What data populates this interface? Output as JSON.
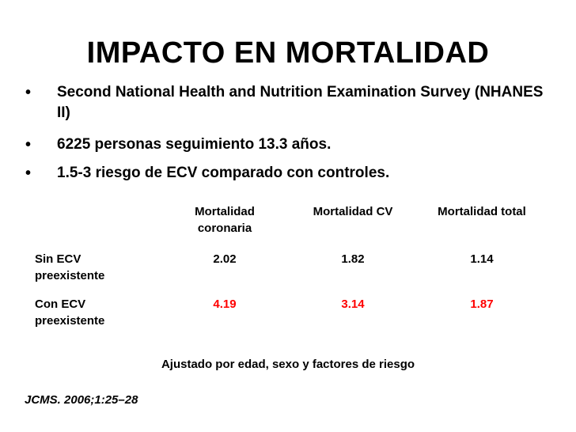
{
  "title": "IMPACTO EN MORTALIDAD",
  "bullets": [
    "Second National Health and Nutrition Examination Survey (NHANES II)",
    "6225 personas seguimiento 13.3 años.",
    "1.5-3 riesgo de ECV comparado con controles."
  ],
  "bullet_symbol": "•",
  "table": {
    "headers": [
      "Mortalidad coronaria",
      "Mortalidad CV",
      "Mortalidad total"
    ],
    "rows": [
      {
        "label": "Sin ECV preexistente",
        "values": [
          "2.02",
          "1.82",
          "1.14"
        ],
        "color": "#000000"
      },
      {
        "label": "Con ECV preexistente",
        "values": [
          "4.19",
          "3.14",
          "1.87"
        ],
        "color": "#ff0000"
      }
    ]
  },
  "footnote": "Ajustado por edad, sexo y factores de riesgo",
  "citation": "JCMS. 2006;1:25–28"
}
